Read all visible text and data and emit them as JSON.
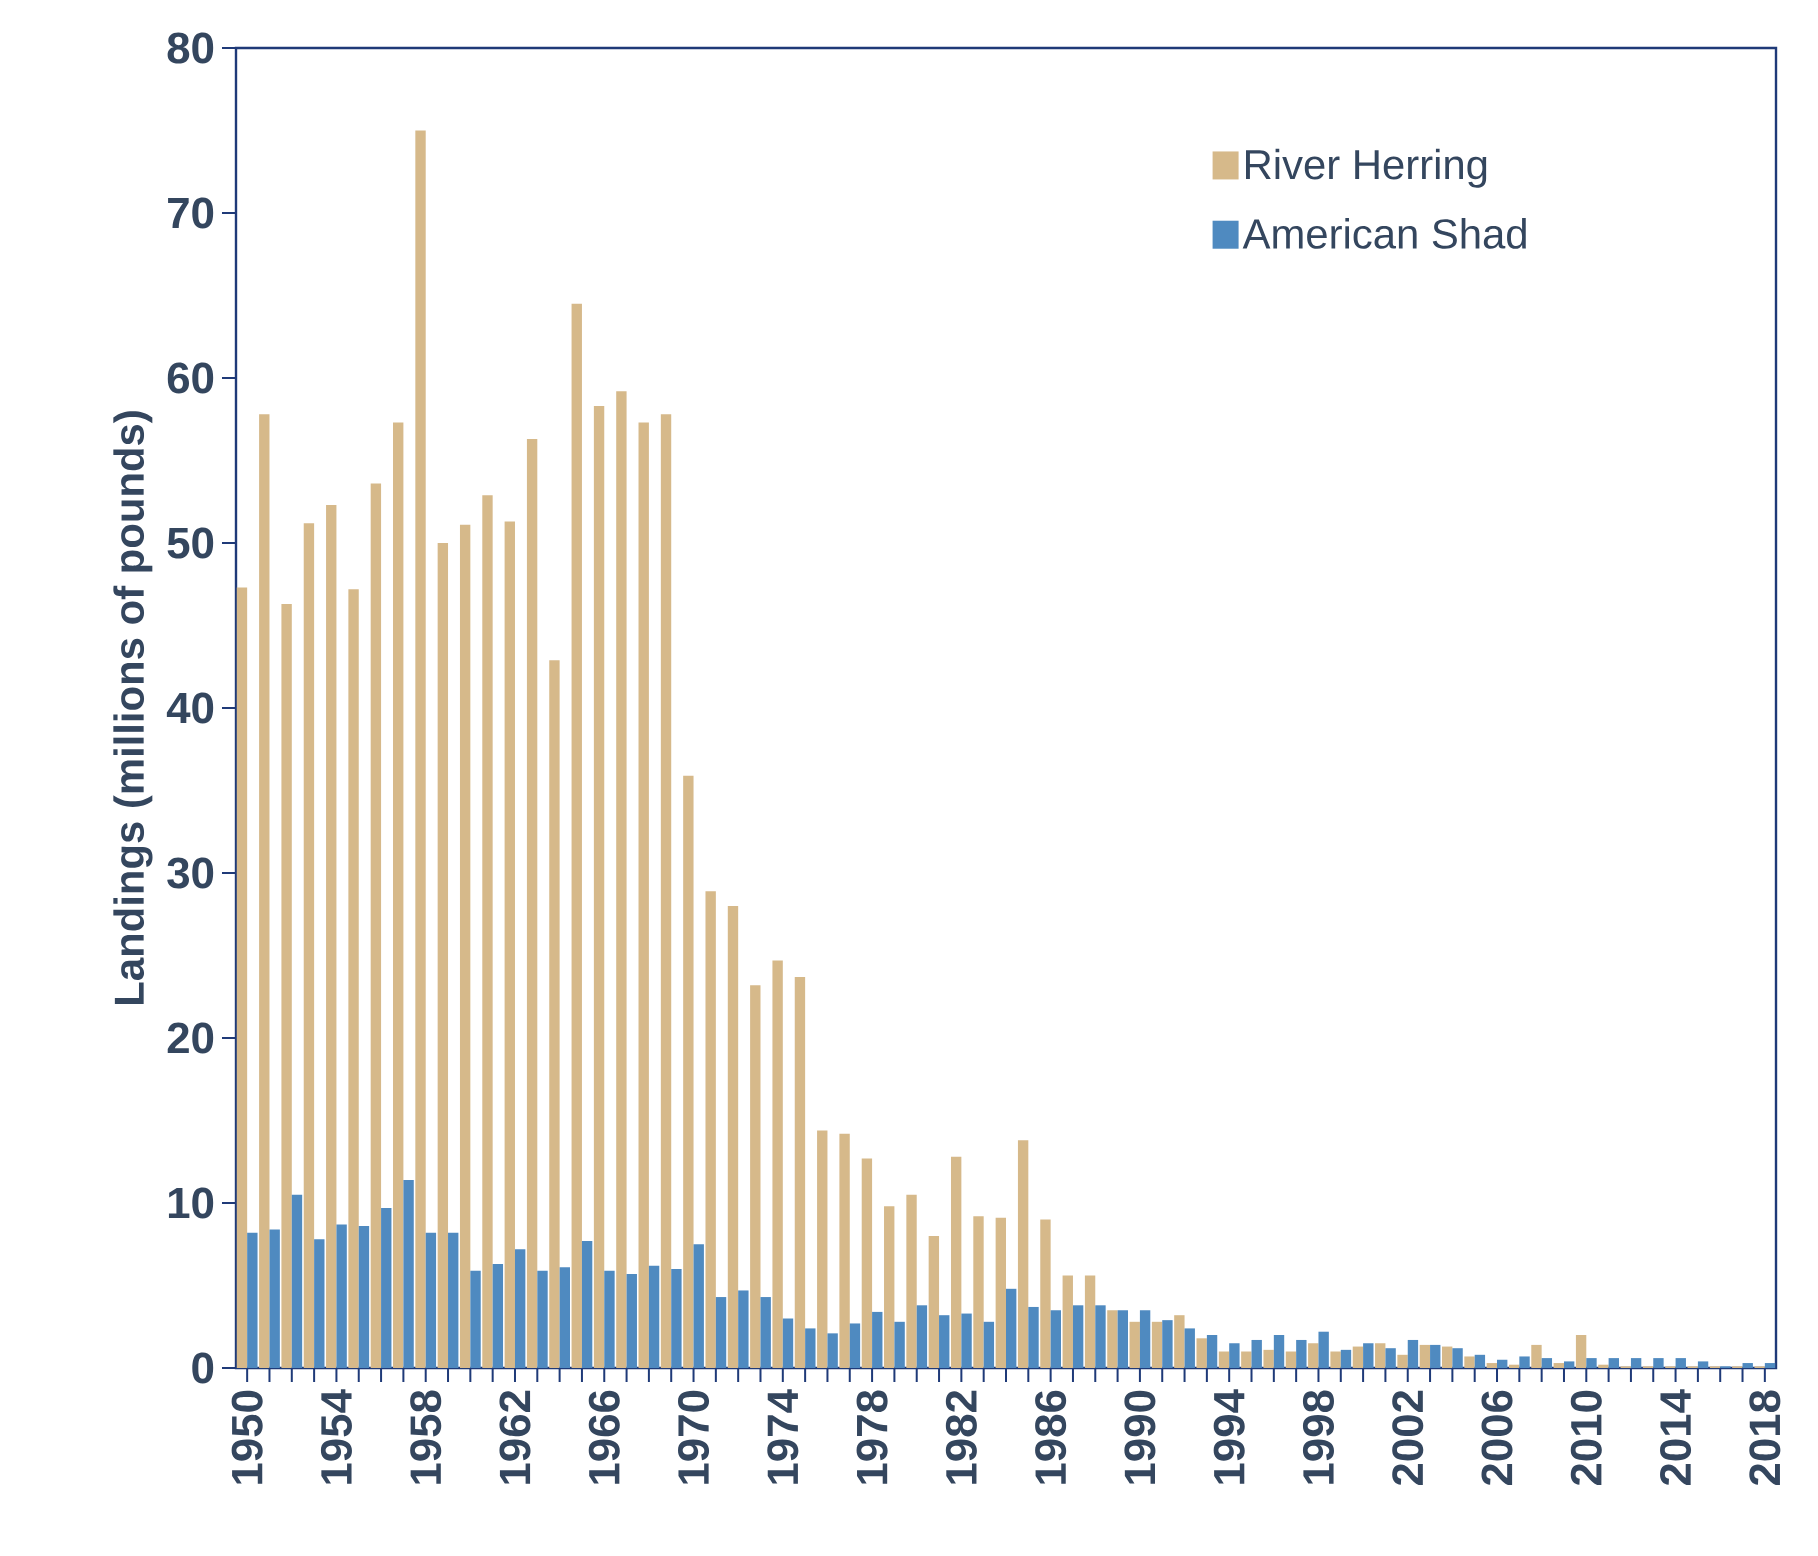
{
  "chart_data": {
    "type": "bar",
    "ylabel": "Landings (millions of pounds)",
    "categories": [
      "1950",
      null,
      null,
      null,
      "1954",
      null,
      null,
      null,
      "1958",
      null,
      null,
      null,
      "1962",
      null,
      null,
      null,
      "1966",
      null,
      null,
      null,
      "1970",
      null,
      null,
      null,
      "1974",
      null,
      null,
      null,
      "1978",
      null,
      null,
      null,
      "1982",
      null,
      null,
      null,
      "1986",
      null,
      null,
      null,
      "1990",
      null,
      null,
      null,
      "1994",
      null,
      null,
      null,
      "1998",
      null,
      null,
      null,
      "2002",
      null,
      null,
      null,
      "2006",
      null,
      null,
      null,
      "2010",
      null,
      null,
      null,
      "2014",
      null,
      null,
      null,
      "2018"
    ],
    "series": [
      {
        "name": "River Herring",
        "color": "#d6b98a",
        "values": [
          47.3,
          57.8,
          46.3,
          51.2,
          52.3,
          47.2,
          53.6,
          57.3,
          75,
          50,
          51.1,
          52.9,
          51.3,
          56.3,
          42.9,
          64.5,
          58.3,
          59.2,
          57.3,
          57.8,
          35.9,
          28.9,
          28,
          23.2,
          24.7,
          23.7,
          14.4,
          14.2,
          12.7,
          9.8,
          10.5,
          8,
          12.8,
          9.2,
          9.1,
          13.8,
          9,
          5.6,
          5.6,
          3.5,
          2.8,
          2.8,
          3.2,
          1.8,
          1,
          1,
          1.1,
          1,
          1.5,
          1,
          1.3,
          1.5,
          0.8,
          1.4,
          1.3,
          0.7,
          0.3,
          0.2,
          1.4,
          0.3,
          2,
          0.2,
          0.1,
          0.1,
          0.1,
          0.1,
          0.1,
          0.1,
          0.1
        ]
      },
      {
        "name": "American Shad",
        "color": "#4f8ac0",
        "values": [
          8.2,
          8.4,
          10.5,
          7.8,
          8.7,
          8.6,
          9.7,
          11.4,
          8.2,
          8.2,
          5.9,
          6.3,
          7.2,
          5.9,
          6.1,
          7.7,
          5.9,
          5.7,
          6.2,
          6,
          7.5,
          4.3,
          4.7,
          4.3,
          3,
          2.4,
          2.1,
          2.7,
          3.4,
          2.8,
          3.8,
          3.2,
          3.3,
          2.8,
          4.8,
          3.7,
          3.5,
          3.8,
          3.8,
          3.5,
          3.5,
          2.9,
          2.4,
          2,
          1.5,
          1.7,
          2,
          1.7,
          2.2,
          1.1,
          1.5,
          1.2,
          1.7,
          1.4,
          1.2,
          0.8,
          0.5,
          0.7,
          0.6,
          0.4,
          0.6,
          0.6,
          0.6,
          0.6,
          0.6,
          0.4,
          0.1,
          0.3,
          0.3
        ]
      }
    ],
    "ylim": [
      0,
      80
    ],
    "yticks": [
      0,
      10,
      20,
      30,
      40,
      50,
      60,
      70,
      80
    ],
    "legend": "top right"
  }
}
